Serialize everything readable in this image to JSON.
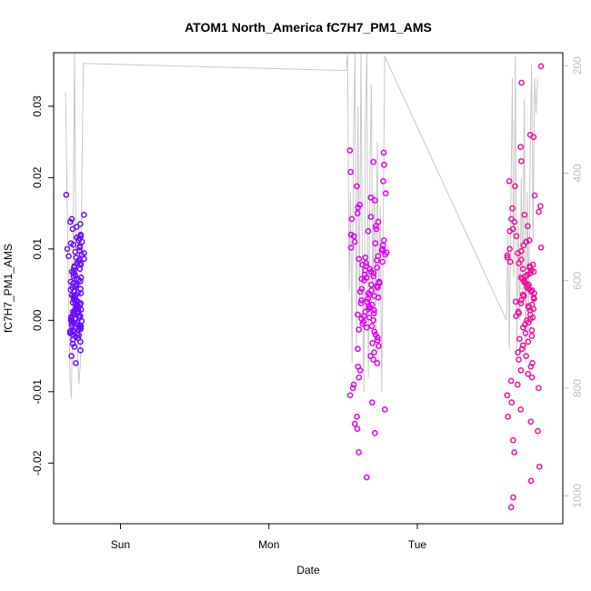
{
  "chart_data": {
    "type": "scatter",
    "title": "ATOM1 North_America fC7H7_PM1_AMS",
    "xlabel": "Date",
    "ylabel": "fC7H7_PM1_AMS",
    "x_ticks": [
      "Sun",
      "Mon",
      "Tue"
    ],
    "x_tick_values": [
      0.0,
      1.0,
      2.0
    ],
    "xlim": [
      -0.45,
      2.98
    ],
    "y_ticks": [
      "-0.02",
      "-0.01",
      "0.00",
      "0.01",
      "0.02",
      "0.03"
    ],
    "y_tick_values": [
      -0.02,
      -0.01,
      0.0,
      0.01,
      0.02,
      0.03
    ],
    "ylim": [
      -0.0285,
      0.0375
    ],
    "right_axis": {
      "ticks": [
        "200",
        "400",
        "600",
        "800",
        "1000"
      ],
      "tick_values": [
        200,
        400,
        600,
        800,
        1000
      ],
      "range": [
        176,
        1052
      ],
      "reversed": true,
      "color": "#bfbfbf"
    },
    "grid": false,
    "legend": "none",
    "point_style": "open-circle",
    "colors": {
      "cluster1": "#6a0dff",
      "cluster2": "#e000f0",
      "cluster3": "#f0109a",
      "line": "#c8c8c8"
    },
    "series": [
      {
        "x_range": [
          -0.37,
          -0.24
        ],
        "x_center": -0.3,
        "color": "#6a0dff",
        "values": [
          0.0176,
          0.0148,
          0.0142,
          0.0138,
          0.0135,
          0.0131,
          0.0128,
          0.012,
          0.0118,
          0.0116,
          0.0115,
          0.0112,
          0.011,
          0.0108,
          0.0106,
          0.0104,
          0.0102,
          0.01,
          0.0098,
          0.0096,
          0.0094,
          0.0092,
          0.009,
          0.0088,
          0.0086,
          0.0085,
          0.0083,
          0.0081,
          0.008,
          0.0078,
          0.0076,
          0.0074,
          0.0072,
          0.007,
          0.0068,
          0.0066,
          0.0064,
          0.0062,
          0.006,
          0.0058,
          0.0057,
          0.0055,
          0.0054,
          0.0052,
          0.005,
          0.0049,
          0.0047,
          0.0046,
          0.0044,
          0.0043,
          0.0041,
          0.004,
          0.0039,
          0.0038,
          0.0036,
          0.0035,
          0.0034,
          0.0033,
          0.0031,
          0.003,
          0.0029,
          0.0028,
          0.0027,
          0.0025,
          0.0024,
          0.0023,
          0.0022,
          0.0021,
          0.002,
          0.0019,
          0.0017,
          0.0016,
          0.0015,
          0.0014,
          0.0013,
          0.0012,
          0.0011,
          0.001,
          0.0009,
          0.0008,
          0.0007,
          0.0006,
          0.0005,
          0.0004,
          0.0003,
          0.0002,
          0.0001,
          0.0,
          -0.0001,
          -0.0002,
          -0.0003,
          -0.0004,
          -0.0005,
          -0.0006,
          -0.0007,
          -0.0008,
          -0.0009,
          -0.001,
          -0.0011,
          -0.0012,
          -0.0013,
          -0.0014,
          -0.0015,
          -0.0016,
          -0.0017,
          -0.0018,
          -0.0019,
          -0.002,
          -0.0021,
          -0.0023,
          -0.0025,
          -0.0027,
          -0.003,
          -0.0033,
          -0.0037,
          -0.0042,
          -0.005,
          -0.006
        ]
      },
      {
        "x_range": [
          1.55,
          1.8
        ],
        "x_center": 1.67,
        "color": "#e000f0",
        "values": [
          0.0238,
          0.0235,
          0.0222,
          0.0218,
          0.0208,
          0.0195,
          0.0188,
          0.0178,
          0.0172,
          0.0168,
          0.0162,
          0.0158,
          0.015,
          0.0145,
          0.0142,
          0.0138,
          0.0132,
          0.0128,
          0.0125,
          0.012,
          0.0118,
          0.0112,
          0.011,
          0.0108,
          0.0105,
          0.0102,
          0.01,
          0.0098,
          0.0095,
          0.0092,
          0.009,
          0.0088,
          0.0086,
          0.0084,
          0.0082,
          0.008,
          0.0078,
          0.0076,
          0.0074,
          0.0072,
          0.007,
          0.0068,
          0.0066,
          0.0064,
          0.0062,
          0.006,
          0.0058,
          0.0056,
          0.0054,
          0.0052,
          0.005,
          0.0048,
          0.0046,
          0.0044,
          0.0042,
          0.004,
          0.0038,
          0.0036,
          0.0034,
          0.0032,
          0.003,
          0.0028,
          0.0026,
          0.0024,
          0.0022,
          0.002,
          0.0018,
          0.0016,
          0.0014,
          0.0012,
          0.001,
          0.0008,
          0.0006,
          0.0004,
          0.0002,
          0.0,
          -0.0002,
          -0.0005,
          -0.0008,
          -0.001,
          -0.0013,
          -0.0016,
          -0.002,
          -0.0024,
          -0.0028,
          -0.0032,
          -0.0036,
          -0.004,
          -0.0045,
          -0.005,
          -0.0055,
          -0.006,
          -0.0065,
          -0.007,
          -0.008,
          -0.009,
          -0.0095,
          -0.0105,
          -0.0115,
          -0.0125,
          -0.0135,
          -0.0145,
          -0.0152,
          -0.0158,
          -0.0185,
          -0.022
        ]
      },
      {
        "x_range": [
          2.6,
          2.83
        ],
        "x_center": 2.72,
        "color": "#f0109a",
        "values": [
          0.0356,
          0.0333,
          0.026,
          0.0257,
          0.0243,
          0.0223,
          0.0195,
          0.0188,
          0.0175,
          0.016,
          0.0157,
          0.0152,
          0.0148,
          0.0142,
          0.0138,
          0.0132,
          0.0128,
          0.0125,
          0.0118,
          0.0112,
          0.011,
          0.0105,
          0.0102,
          0.01,
          0.0097,
          0.0094,
          0.0091,
          0.0088,
          0.0085,
          0.0082,
          0.008,
          0.0078,
          0.0076,
          0.0074,
          0.0072,
          0.007,
          0.0068,
          0.0066,
          0.0064,
          0.0062,
          0.006,
          0.0058,
          0.0056,
          0.0054,
          0.0052,
          0.005,
          0.0048,
          0.0046,
          0.0044,
          0.0042,
          0.004,
          0.0038,
          0.0036,
          0.0034,
          0.0032,
          0.003,
          0.0028,
          0.0026,
          0.0024,
          0.0022,
          0.002,
          0.0018,
          0.0016,
          0.0014,
          0.0012,
          0.001,
          0.0008,
          0.0006,
          0.0004,
          0.0002,
          0.0,
          -0.0003,
          -0.0006,
          -0.001,
          -0.0014,
          -0.0018,
          -0.0022,
          -0.0026,
          -0.003,
          -0.0035,
          -0.004,
          -0.0045,
          -0.005,
          -0.0055,
          -0.006,
          -0.0065,
          -0.007,
          -0.0075,
          -0.008,
          -0.0085,
          -0.009,
          -0.0095,
          -0.0105,
          -0.0115,
          -0.0125,
          -0.0135,
          -0.0142,
          -0.0155,
          -0.0168,
          -0.0185,
          -0.0205,
          -0.0225,
          -0.0248,
          -0.0262
        ]
      }
    ],
    "line_series": {
      "color": "#c8c8c8",
      "points": [
        [
          -0.37,
          0.032
        ],
        [
          -0.35,
          0.004
        ],
        [
          -0.34,
          -0.008
        ],
        [
          -0.33,
          -0.011
        ],
        [
          -0.32,
          0.006
        ],
        [
          -0.31,
          0.0375
        ],
        [
          -0.3,
          0.01
        ],
        [
          -0.29,
          -0.0035
        ],
        [
          -0.28,
          -0.009
        ],
        [
          -0.27,
          -0.006
        ],
        [
          -0.26,
          0.02
        ],
        [
          -0.25,
          0.036
        ],
        [
          1.52,
          0.035
        ],
        [
          1.53,
          0.0375
        ],
        [
          1.54,
          0.004
        ],
        [
          1.55,
          0.018
        ],
        [
          1.56,
          -0.006
        ],
        [
          1.57,
          0.025
        ],
        [
          1.58,
          0.0375
        ],
        [
          1.59,
          -0.004
        ],
        [
          1.6,
          0.03
        ],
        [
          1.61,
          0.002
        ],
        [
          1.62,
          0.0375
        ],
        [
          1.63,
          0.006
        ],
        [
          1.64,
          -0.01
        ],
        [
          1.65,
          0.028
        ],
        [
          1.66,
          0.0375
        ],
        [
          1.67,
          -0.008
        ],
        [
          1.68,
          0.02
        ],
        [
          1.69,
          0.033
        ],
        [
          1.7,
          0.004
        ],
        [
          1.71,
          0.018
        ],
        [
          1.72,
          -0.002
        ],
        [
          1.73,
          0.025
        ],
        [
          1.74,
          0.002
        ],
        [
          1.75,
          0.016
        ],
        [
          1.76,
          -0.01
        ],
        [
          1.77,
          0.012
        ],
        [
          1.78,
          0.037
        ],
        [
          2.6,
          0.0
        ],
        [
          2.61,
          0.012
        ],
        [
          2.62,
          -0.004
        ],
        [
          2.63,
          0.016
        ],
        [
          2.64,
          0.034
        ],
        [
          2.65,
          0.006
        ],
        [
          2.66,
          0.037
        ],
        [
          2.67,
          -0.005
        ],
        [
          2.68,
          0.014
        ],
        [
          2.69,
          0.0
        ],
        [
          2.7,
          0.02
        ],
        [
          2.71,
          0.004
        ],
        [
          2.72,
          0.031
        ],
        [
          2.73,
          -0.006
        ],
        [
          2.74,
          0.018
        ],
        [
          2.75,
          0.002
        ],
        [
          2.76,
          0.024
        ],
        [
          2.77,
          0.036
        ],
        [
          2.78,
          0.011
        ],
        [
          2.79,
          0.034
        ],
        [
          2.8,
          0.029
        ],
        [
          2.81,
          0.034
        ]
      ]
    }
  }
}
